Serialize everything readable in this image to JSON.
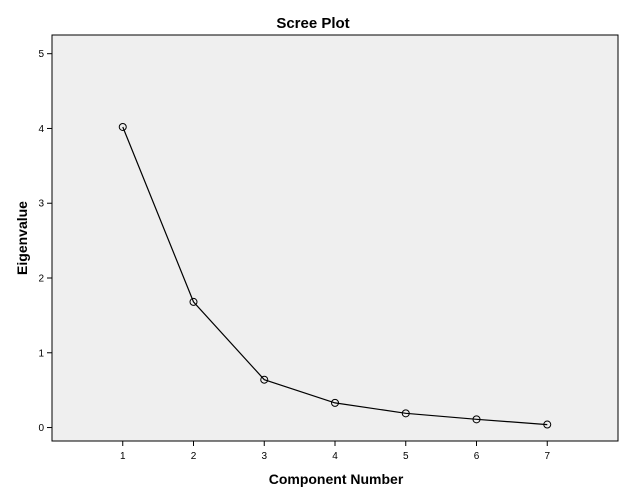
{
  "chart_data": {
    "type": "line",
    "title": "Scree Plot",
    "xlabel": "Component Number",
    "ylabel": "Eigenvalue",
    "x": [
      1,
      2,
      3,
      4,
      5,
      6,
      7
    ],
    "y": [
      4.02,
      1.68,
      0.64,
      0.33,
      0.19,
      0.11,
      0.04
    ],
    "xlim": [
      0,
      8
    ],
    "ylim": [
      -0.18,
      5.25
    ],
    "xticks": [
      "1",
      "2",
      "3",
      "4",
      "5",
      "6",
      "7"
    ],
    "yticks": [
      "0",
      "1",
      "2",
      "3",
      "4",
      "5"
    ],
    "grid": false,
    "marker": "open-circle",
    "colors": {
      "plot_background": "#efefef",
      "line": "#000000",
      "frame": "#000000"
    }
  }
}
